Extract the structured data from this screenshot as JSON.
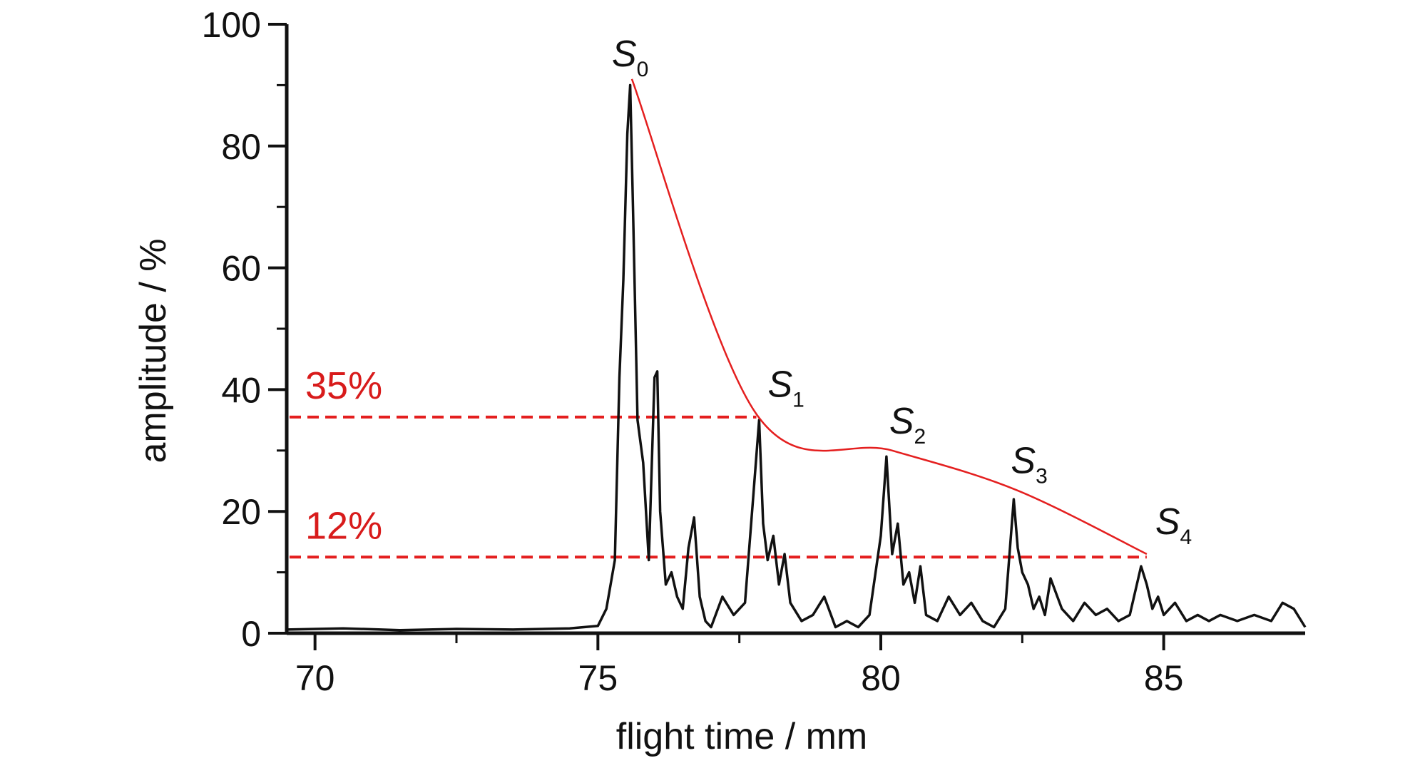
{
  "chart_data": {
    "type": "line",
    "title": "",
    "xlabel": "flight time / mm",
    "ylabel": "amplitude / %",
    "xlim": [
      69.5,
      87.5
    ],
    "ylim": [
      0,
      100
    ],
    "x_ticks": [
      70,
      75,
      80,
      85
    ],
    "x_minor_ticks": [
      72.5,
      77.5,
      82.5
    ],
    "y_ticks": [
      0,
      20,
      40,
      60,
      80,
      100
    ],
    "y_minor_ticks": [
      10,
      30,
      50,
      70,
      90
    ],
    "grid": false,
    "legend": "none",
    "colors": {
      "signal": "#111111",
      "envelope": "#e41f1f",
      "threshold": "#e41f1f",
      "threshold_text": "#d81b1b"
    },
    "series": [
      {
        "name": "",
        "x": [
          69.5,
          70.5,
          71.5,
          72.5,
          73.5,
          74.5,
          75.0,
          75.15,
          75.3,
          75.38,
          75.45,
          75.52,
          75.57,
          75.62,
          75.7,
          75.8,
          75.9,
          76.0,
          76.05,
          76.1,
          76.2,
          76.3,
          76.4,
          76.5,
          76.6,
          76.7,
          76.8,
          76.9,
          77.0,
          77.2,
          77.4,
          77.6,
          77.75,
          77.85,
          77.92,
          78.0,
          78.1,
          78.2,
          78.3,
          78.4,
          78.6,
          78.8,
          79.0,
          79.2,
          79.4,
          79.6,
          79.8,
          80.0,
          80.1,
          80.2,
          80.3,
          80.4,
          80.5,
          80.6,
          80.7,
          80.8,
          81.0,
          81.2,
          81.4,
          81.6,
          81.8,
          82.0,
          82.2,
          82.35,
          82.42,
          82.5,
          82.6,
          82.7,
          82.8,
          82.9,
          83.0,
          83.2,
          83.4,
          83.6,
          83.8,
          84.0,
          84.2,
          84.4,
          84.6,
          84.7,
          84.8,
          84.9,
          85.0,
          85.2,
          85.4,
          85.6,
          85.8,
          86.0,
          86.3,
          86.6,
          86.9,
          87.1,
          87.3,
          87.5
        ],
        "y": [
          0.6,
          0.8,
          0.5,
          0.7,
          0.6,
          0.8,
          1.2,
          4,
          12,
          42,
          58,
          82,
          90,
          70,
          35,
          28,
          12,
          42,
          43,
          20,
          8,
          10,
          6,
          4,
          14,
          19,
          6,
          2,
          1,
          6,
          3,
          5,
          23,
          35,
          18,
          12,
          16,
          8,
          13,
          5,
          2,
          3,
          6,
          1,
          2,
          1,
          3,
          16,
          29,
          13,
          18,
          8,
          10,
          5,
          11,
          3,
          2,
          6,
          3,
          5,
          2,
          1,
          4,
          22,
          14,
          10,
          8,
          4,
          6,
          3,
          9,
          4,
          2,
          5,
          3,
          4,
          2,
          3,
          11,
          8,
          4,
          6,
          3,
          5,
          2,
          3,
          2,
          3,
          2,
          3,
          2,
          5,
          4,
          1
        ]
      }
    ],
    "envelope": {
      "x": [
        75.6,
        77.8,
        80.2,
        82.4,
        84.7
      ],
      "y": [
        91,
        36,
        30,
        23.5,
        13
      ]
    },
    "peaks": [
      {
        "symbol": "S",
        "sub": "0",
        "x": 75.6,
        "y": 91
      },
      {
        "symbol": "S",
        "sub": "1",
        "x": 77.8,
        "y": 36
      },
      {
        "symbol": "S",
        "sub": "2",
        "x": 80.2,
        "y": 30
      },
      {
        "symbol": "S",
        "sub": "3",
        "x": 82.4,
        "y": 23.5
      },
      {
        "symbol": "S",
        "sub": "4",
        "x": 84.7,
        "y": 13
      }
    ],
    "thresholds": [
      {
        "label": "35%",
        "y": 35.5,
        "x_end": 77.8
      },
      {
        "label": "12%",
        "y": 12.5,
        "x_end": 84.7
      }
    ]
  }
}
